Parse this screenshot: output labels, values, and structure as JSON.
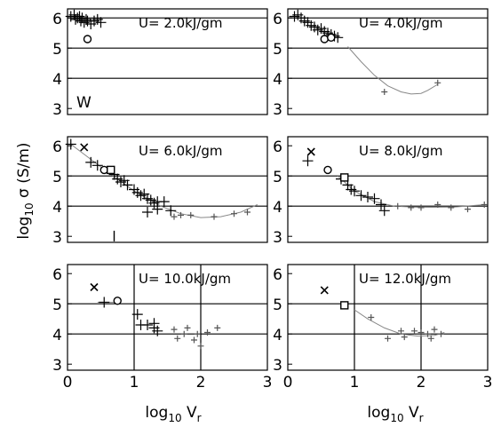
{
  "figure": {
    "y_label_base": "log",
    "y_label_sub": "10",
    "y_label_rest": " σ  (S/m)",
    "x_label_base": "log",
    "x_label_sub": "10",
    "x_label_main": " V",
    "x_label_var_sub": "r"
  },
  "chart_data": [
    {
      "type": "scatter",
      "panel": "top-left",
      "title": "U=   2.0kJ/gm",
      "corner_label": "W",
      "xlim": [
        0,
        3
      ],
      "ylim": [
        2.8,
        6.3
      ],
      "xticks": [],
      "yticks": [
        "3",
        "4",
        "5",
        "6"
      ],
      "grid_y": [
        4,
        5,
        6
      ],
      "grid_x": [],
      "series": [
        {
          "marker": "plus-large",
          "points": [
            [
              0.05,
              6.05
            ],
            [
              0.1,
              6.1
            ],
            [
              0.12,
              5.95
            ],
            [
              0.15,
              6.0
            ],
            [
              0.18,
              6.05
            ],
            [
              0.2,
              5.9
            ],
            [
              0.22,
              6.0
            ],
            [
              0.25,
              5.85
            ],
            [
              0.28,
              5.95
            ],
            [
              0.3,
              5.9
            ],
            [
              0.35,
              5.8
            ],
            [
              0.4,
              5.9
            ],
            [
              0.5,
              5.85
            ],
            [
              0.45,
              5.95
            ]
          ]
        },
        {
          "marker": "circle",
          "points": [
            [
              0.3,
              5.3
            ]
          ]
        }
      ],
      "fit_curve": []
    },
    {
      "type": "scatter",
      "panel": "top-right",
      "title": "U=   4.0kJ/gm",
      "xlim": [
        0,
        3
      ],
      "ylim": [
        2.8,
        6.3
      ],
      "xticks": [],
      "yticks": [
        "3",
        "4",
        "5",
        "6"
      ],
      "grid_y": [
        4,
        5,
        6
      ],
      "grid_x": [],
      "series": [
        {
          "marker": "plus-large",
          "points": [
            [
              0.1,
              6.05
            ],
            [
              0.15,
              6.1
            ],
            [
              0.2,
              6.0
            ],
            [
              0.25,
              5.9
            ],
            [
              0.3,
              5.85
            ],
            [
              0.35,
              5.75
            ],
            [
              0.4,
              5.7
            ],
            [
              0.45,
              5.6
            ],
            [
              0.5,
              5.65
            ],
            [
              0.55,
              5.55
            ],
            [
              0.6,
              5.5
            ],
            [
              0.65,
              5.45
            ],
            [
              0.7,
              5.4
            ],
            [
              0.75,
              5.35
            ]
          ]
        },
        {
          "marker": "plus-small",
          "points": [
            [
              1.45,
              3.55
            ],
            [
              2.25,
              3.85
            ]
          ]
        },
        {
          "marker": "circle",
          "points": [
            [
              0.55,
              5.3
            ],
            [
              0.65,
              5.35
            ]
          ]
        }
      ],
      "fit_curve": [
        [
          0.9,
          5.05
        ],
        [
          1.1,
          4.55
        ],
        [
          1.3,
          4.1
        ],
        [
          1.5,
          3.75
        ],
        [
          1.7,
          3.55
        ],
        [
          1.85,
          3.48
        ],
        [
          2.0,
          3.5
        ],
        [
          2.1,
          3.6
        ],
        [
          2.25,
          3.8
        ]
      ]
    },
    {
      "type": "scatter",
      "panel": "middle-left",
      "title": "U=   6.0kJ/gm",
      "xlim": [
        0,
        3
      ],
      "ylim": [
        2.8,
        6.3
      ],
      "xticks": [],
      "yticks": [
        "3",
        "4",
        "5",
        "6"
      ],
      "grid_y": [
        4,
        5
      ],
      "grid_x": [],
      "series": [
        {
          "marker": "x",
          "points": [
            [
              0.25,
              5.95
            ]
          ]
        },
        {
          "marker": "plus-large",
          "points": [
            [
              0.05,
              6.05
            ],
            [
              0.35,
              5.45
            ],
            [
              0.45,
              5.35
            ],
            [
              0.7,
              5.05
            ],
            [
              0.75,
              4.9
            ],
            [
              0.8,
              4.8
            ],
            [
              0.85,
              4.85
            ],
            [
              0.9,
              4.7
            ],
            [
              1.0,
              4.55
            ],
            [
              1.05,
              4.45
            ],
            [
              1.1,
              4.35
            ],
            [
              1.15,
              4.4
            ],
            [
              1.2,
              4.25
            ],
            [
              1.25,
              4.2
            ],
            [
              1.3,
              4.1
            ],
            [
              1.35,
              4.15
            ],
            [
              1.2,
              3.8
            ],
            [
              1.45,
              4.15
            ],
            [
              1.35,
              3.9
            ],
            [
              1.55,
              3.85
            ]
          ]
        },
        {
          "marker": "plus-small",
          "points": [
            [
              1.7,
              3.7
            ],
            [
              1.85,
              3.7
            ],
            [
              2.2,
              3.65
            ],
            [
              2.5,
              3.75
            ],
            [
              2.7,
              3.8
            ],
            [
              1.6,
              3.65
            ]
          ]
        },
        {
          "marker": "circle",
          "points": [
            [
              0.55,
              5.2
            ]
          ]
        },
        {
          "marker": "square",
          "points": [
            [
              0.65,
              5.2
            ]
          ]
        },
        {
          "marker": "tick",
          "points": [
            [
              0.7,
              2.95
            ]
          ]
        }
      ],
      "fit_curve": [
        [
          0.05,
          6.05
        ],
        [
          0.5,
          5.3
        ],
        [
          1.0,
          4.5
        ],
        [
          1.4,
          4.0
        ],
        [
          1.7,
          3.75
        ],
        [
          2.0,
          3.62
        ],
        [
          2.3,
          3.65
        ],
        [
          2.6,
          3.8
        ],
        [
          2.85,
          4.05
        ]
      ]
    },
    {
      "type": "scatter",
      "panel": "middle-right",
      "title": "U=   8.0kJ/gm",
      "xlim": [
        0,
        3
      ],
      "ylim": [
        2.8,
        6.3
      ],
      "xticks": [],
      "yticks": [
        "3",
        "4",
        "5",
        "6"
      ],
      "grid_y": [
        4,
        5
      ],
      "grid_x": [],
      "series": [
        {
          "marker": "x",
          "points": [
            [
              0.35,
              5.8
            ]
          ]
        },
        {
          "marker": "plus-large",
          "points": [
            [
              0.3,
              5.5
            ],
            [
              0.8,
              4.9
            ],
            [
              0.9,
              4.7
            ],
            [
              0.95,
              4.55
            ],
            [
              1.0,
              4.5
            ],
            [
              1.1,
              4.35
            ],
            [
              1.2,
              4.3
            ],
            [
              1.3,
              4.25
            ],
            [
              1.4,
              4.05
            ],
            [
              1.45,
              3.85
            ]
          ]
        },
        {
          "marker": "plus-small",
          "points": [
            [
              1.65,
              4.0
            ],
            [
              2.0,
              3.95
            ],
            [
              2.25,
              4.05
            ],
            [
              2.45,
              3.95
            ],
            [
              2.7,
              3.9
            ],
            [
              2.95,
              4.05
            ],
            [
              1.85,
              3.95
            ]
          ]
        },
        {
          "marker": "circle",
          "points": [
            [
              0.6,
              5.2
            ]
          ]
        },
        {
          "marker": "square",
          "points": [
            [
              0.85,
              4.95
            ]
          ]
        }
      ],
      "fit_curve": [
        [
          0.75,
          5.0
        ],
        [
          1.0,
          4.5
        ],
        [
          1.3,
          4.15
        ],
        [
          1.6,
          4.0
        ],
        [
          2.0,
          3.96
        ],
        [
          2.5,
          3.97
        ],
        [
          2.95,
          4.05
        ]
      ]
    },
    {
      "type": "scatter",
      "panel": "bottom-left",
      "title": "U=  10.0kJ/gm",
      "xlim": [
        0,
        3
      ],
      "ylim": [
        2.8,
        6.3
      ],
      "xticks": [
        "0",
        "1",
        "2",
        "3"
      ],
      "yticks": [
        "3",
        "4",
        "5",
        "6"
      ],
      "grid_y": [
        4,
        5
      ],
      "grid_x": [
        1,
        2
      ],
      "series": [
        {
          "marker": "x",
          "points": [
            [
              0.4,
              5.55
            ]
          ]
        },
        {
          "marker": "plus-large",
          "points": [
            [
              0.55,
              5.05
            ],
            [
              1.05,
              4.65
            ],
            [
              1.1,
              4.3
            ],
            [
              1.2,
              4.3
            ],
            [
              1.3,
              4.35
            ],
            [
              1.35,
              4.1
            ],
            [
              1.3,
              4.2
            ]
          ]
        },
        {
          "marker": "plus-small",
          "points": [
            [
              1.6,
              4.15
            ],
            [
              1.65,
              3.85
            ],
            [
              1.75,
              4.0
            ],
            [
              1.8,
              4.2
            ],
            [
              1.9,
              3.8
            ],
            [
              2.0,
              3.6
            ],
            [
              2.1,
              4.05
            ],
            [
              2.25,
              4.2
            ],
            [
              1.95,
              4.0
            ]
          ]
        },
        {
          "marker": "circle",
          "points": [
            [
              0.75,
              5.1
            ]
          ]
        }
      ],
      "fit_curve": [
        [
          0.45,
          5.05
        ],
        [
          0.75,
          5.05
        ]
      ]
    },
    {
      "type": "scatter",
      "panel": "bottom-right",
      "title": "U=  12.0kJ/gm",
      "xlim": [
        0,
        3
      ],
      "ylim": [
        2.8,
        6.3
      ],
      "xticks": [
        "0",
        "1",
        "2",
        "3"
      ],
      "yticks": [
        "3",
        "4",
        "5",
        "6"
      ],
      "grid_y": [
        4,
        5
      ],
      "grid_x": [
        1,
        2
      ],
      "series": [
        {
          "marker": "x",
          "points": [
            [
              0.55,
              5.45
            ]
          ]
        },
        {
          "marker": "plus-small",
          "points": [
            [
              1.25,
              4.55
            ],
            [
              1.5,
              3.85
            ],
            [
              1.75,
              3.9
            ],
            [
              1.9,
              4.1
            ],
            [
              2.0,
              4.05
            ],
            [
              2.1,
              4.0
            ],
            [
              2.2,
              4.15
            ],
            [
              2.3,
              4.0
            ],
            [
              1.7,
              4.1
            ],
            [
              2.15,
              3.85
            ]
          ]
        },
        {
          "marker": "square",
          "points": [
            [
              0.85,
              4.95
            ]
          ]
        }
      ],
      "fit_curve": [
        [
          1.0,
          4.8
        ],
        [
          1.2,
          4.5
        ],
        [
          1.45,
          4.2
        ],
        [
          1.7,
          4.0
        ],
        [
          1.95,
          3.93
        ],
        [
          2.2,
          3.95
        ],
        [
          2.35,
          4.05
        ]
      ]
    }
  ]
}
